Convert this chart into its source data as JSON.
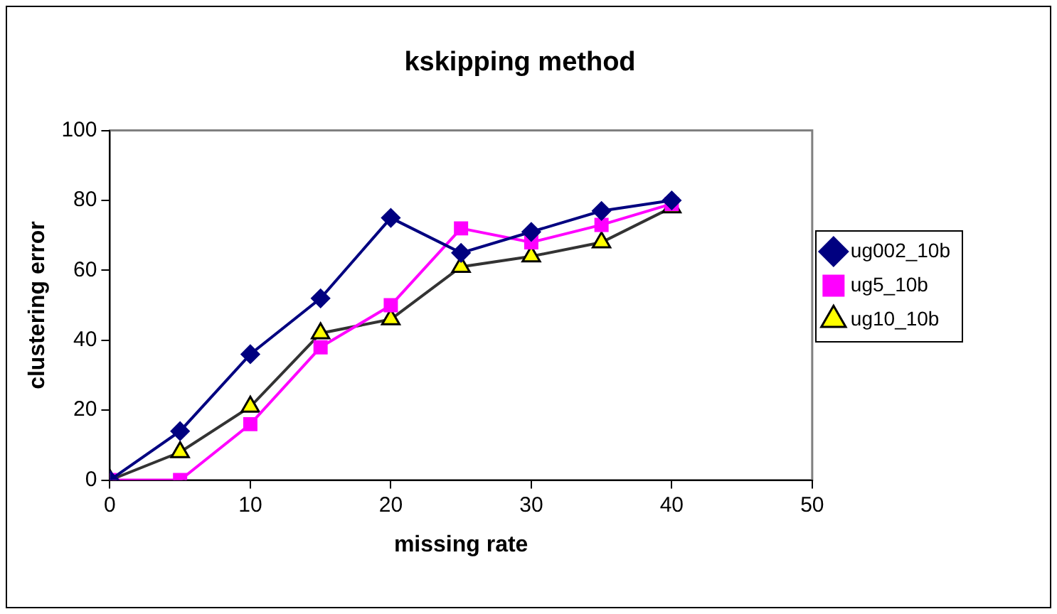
{
  "chart_data": {
    "type": "line",
    "title": "kskipping method",
    "xlabel": "missing rate",
    "ylabel": "clustering error",
    "x": [
      0,
      5,
      10,
      15,
      20,
      25,
      30,
      35,
      40
    ],
    "series": [
      {
        "name": "ug002_10b",
        "color": "#000080",
        "marker": "diamond",
        "values": [
          0,
          14,
          36,
          52,
          75,
          65,
          71,
          77,
          80
        ]
      },
      {
        "name": "ug5_10b",
        "color": "#ff00ff",
        "marker": "square",
        "values": [
          0,
          0,
          16,
          38,
          50,
          72,
          68,
          73,
          79
        ]
      },
      {
        "name": "ug10_10b",
        "color": "#333333",
        "marker": "triangle",
        "values": [
          0,
          8,
          21,
          42,
          46,
          61,
          64,
          68,
          78
        ]
      }
    ],
    "xlim": [
      0,
      50
    ],
    "xticks": [
      0,
      10,
      20,
      30,
      40,
      50
    ],
    "ylim": [
      0,
      100
    ],
    "yticks": [
      0,
      20,
      40,
      60,
      80,
      100
    ],
    "grid": false,
    "legend": "right"
  }
}
